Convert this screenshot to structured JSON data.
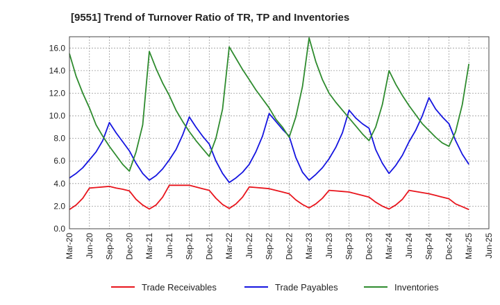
{
  "chart_data": {
    "type": "line",
    "title": "[9551]  Trend of Turnover Ratio of TR, TP and Inventories",
    "xlabel": "",
    "ylabel": "",
    "ylim": [
      0,
      17
    ],
    "yticks": [
      "0.0",
      "2.0",
      "4.0",
      "6.0",
      "8.0",
      "10.0",
      "12.0",
      "14.0",
      "16.0"
    ],
    "xticks": [
      "Mar-20",
      "Jun-20",
      "Sep-20",
      "Dec-20",
      "Mar-21",
      "Jun-21",
      "Sep-21",
      "Dec-21",
      "Mar-22",
      "Jun-22",
      "Sep-22",
      "Dec-22",
      "Mar-23",
      "Jun-23",
      "Sep-23",
      "Dec-23",
      "Mar-24",
      "Jun-24",
      "Sep-24",
      "Dec-24",
      "Mar-25",
      "Jun-25"
    ],
    "grid": true,
    "legend_position": "bottom",
    "colors": {
      "trade_receivables": "#e8141c",
      "trade_payables": "#1414e0",
      "inventories": "#2e8b2e"
    },
    "series": [
      {
        "name": "Trade Receivables",
        "values": [
          1.7,
          2.1,
          2.7,
          3.6,
          3.65,
          3.7,
          3.75,
          3.6,
          3.5,
          3.35,
          2.6,
          2.1,
          1.75,
          2.1,
          2.8,
          3.85,
          3.85,
          3.85,
          3.85,
          3.7,
          3.55,
          3.4,
          2.7,
          2.15,
          1.8,
          2.2,
          2.8,
          3.7,
          3.65,
          3.6,
          3.55,
          3.4,
          3.25,
          3.1,
          2.55,
          2.15,
          1.85,
          2.2,
          2.7,
          3.4,
          3.35,
          3.3,
          3.25,
          3.1,
          2.95,
          2.8,
          2.35,
          2.0,
          1.75,
          2.1,
          2.6,
          3.4,
          3.3,
          3.2,
          3.1,
          2.95,
          2.8,
          2.65,
          2.2,
          1.95,
          1.7
        ]
      },
      {
        "name": "Trade Payables",
        "values": [
          4.5,
          4.9,
          5.4,
          6.1,
          6.8,
          7.8,
          9.4,
          8.5,
          7.7,
          6.9,
          5.8,
          4.9,
          4.3,
          4.7,
          5.3,
          6.1,
          7.0,
          8.3,
          9.9,
          9.0,
          8.2,
          7.5,
          6.0,
          4.9,
          4.1,
          4.5,
          5.0,
          5.7,
          6.8,
          8.2,
          10.2,
          9.5,
          8.8,
          8.2,
          6.3,
          5.0,
          4.3,
          4.8,
          5.4,
          6.2,
          7.2,
          8.5,
          10.5,
          9.8,
          9.3,
          8.9,
          7.0,
          5.8,
          4.9,
          5.6,
          6.5,
          7.7,
          8.7,
          10.0,
          11.6,
          10.6,
          9.9,
          9.3,
          7.8,
          6.6,
          5.7
        ]
      },
      {
        "name": "Inventories",
        "values": [
          15.5,
          13.5,
          12.0,
          10.7,
          9.2,
          8.2,
          7.3,
          6.5,
          5.7,
          5.1,
          6.8,
          9.2,
          15.7,
          14.2,
          12.9,
          11.8,
          10.5,
          9.5,
          8.6,
          7.8,
          7.1,
          6.4,
          8.0,
          10.6,
          16.1,
          15.1,
          14.1,
          13.2,
          12.3,
          11.5,
          10.7,
          9.7,
          9.0,
          8.1,
          9.9,
          12.6,
          16.9,
          14.8,
          13.2,
          12.0,
          11.2,
          10.5,
          9.8,
          9.1,
          8.4,
          7.8,
          9.0,
          11.0,
          14.0,
          12.8,
          11.8,
          10.9,
          10.1,
          9.3,
          8.7,
          8.1,
          7.6,
          7.3,
          8.6,
          11.0,
          14.6
        ]
      }
    ]
  }
}
